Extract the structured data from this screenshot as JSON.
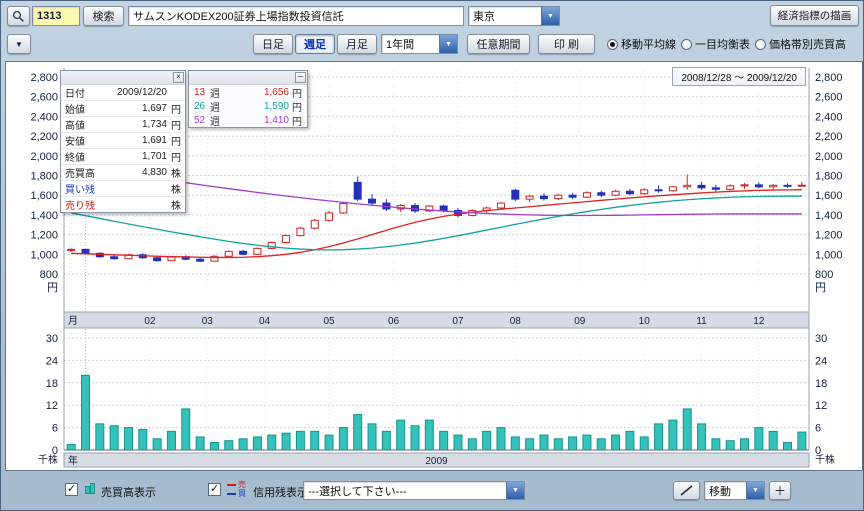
{
  "toolbar": {
    "code_value": "1313",
    "search_label": "検索",
    "name_value": "サムスンKODEX200証券上場指数投資信託",
    "market_value": "東京",
    "econ_button_label": "経済指標の描画"
  },
  "period_bar": {
    "daily_label": "日足",
    "weekly_label": "週足",
    "monthly_label": "月足",
    "range_value": "1年間",
    "custom_range_label": "任意期間",
    "print_label": "印 刷",
    "radios": [
      {
        "label": "移動平均線",
        "checked": true
      },
      {
        "label": "一目均衡表",
        "checked": false
      },
      {
        "label": "価格帯別売買高",
        "checked": false
      }
    ]
  },
  "info_box": {
    "rows": [
      {
        "label": "日付",
        "value": "2009/12/20",
        "unit": ""
      },
      {
        "label": "始値",
        "value": "1,697",
        "unit": "円"
      },
      {
        "label": "高値",
        "value": "1,734",
        "unit": "円"
      },
      {
        "label": "安値",
        "value": "1,691",
        "unit": "円"
      },
      {
        "label": "終値",
        "value": "1,701",
        "unit": "円"
      },
      {
        "label": "売買高",
        "value": "4,830",
        "unit": "株"
      },
      {
        "label": "買い残",
        "value": "",
        "unit": "株"
      },
      {
        "label": "売り残",
        "value": "",
        "unit": "株"
      }
    ]
  },
  "legend": {
    "rows": [
      {
        "period": "13",
        "period_unit": "週",
        "value": "1,656",
        "value_unit": "円",
        "color": "#dd2222"
      },
      {
        "period": "26",
        "period_unit": "週",
        "value": "1,590",
        "value_unit": "円",
        "color": "#13a39a"
      },
      {
        "period": "52",
        "period_unit": "週",
        "value": "1,410",
        "value_unit": "円",
        "color": "#a23cc8"
      }
    ]
  },
  "bottom_bar": {
    "volume_check_label": "売買高表示",
    "margin_check_label": "信用残表示",
    "margin_sell": "売",
    "margin_buy": "買",
    "select_value": "---選択して下さい---",
    "move_value": "移動",
    "plus_label": "＋"
  },
  "icons": {
    "arrow_down": "▼",
    "check": "✓",
    "close": "×",
    "minimize": "─"
  },
  "chart_data": {
    "type": "candlestick",
    "date_range": "2008/12/28 ～ 2009/12/20",
    "price_axis": {
      "min": 800,
      "max": 2800,
      "step": 200,
      "unit": "円"
    },
    "volume_axis": {
      "min": 0,
      "max": 30,
      "step": 6,
      "unit": "千株"
    },
    "months": [
      {
        "label": "月",
        "week": 0
      },
      {
        "label": "02",
        "week": 5.5
      },
      {
        "label": "03",
        "week": 9.5
      },
      {
        "label": "04",
        "week": 13.5
      },
      {
        "label": "05",
        "week": 18
      },
      {
        "label": "06",
        "week": 22.5
      },
      {
        "label": "07",
        "week": 27
      },
      {
        "label": "08",
        "week": 31
      },
      {
        "label": "09",
        "week": 35.5
      },
      {
        "label": "10",
        "week": 40
      },
      {
        "label": "11",
        "week": 44
      },
      {
        "label": "12",
        "week": 48
      }
    ],
    "year_row": {
      "label": "年",
      "value": "2009"
    },
    "colors": {
      "up_candle": "#cc2222",
      "up_fill": "#ffffff",
      "down_candle": "#2431b8",
      "volume_bar": "#35c2ba",
      "volume_border": "#13968e",
      "grid": "#ccd2db",
      "month_line": "#dde2ea",
      "year_line": "#dfb565"
    },
    "candles": [
      [
        1040,
        1060,
        1025,
        1050
      ],
      [
        1050,
        1055,
        1000,
        1010
      ],
      [
        1010,
        1020,
        965,
        975
      ],
      [
        975,
        990,
        945,
        955
      ],
      [
        955,
        1005,
        950,
        995
      ],
      [
        995,
        1010,
        955,
        965
      ],
      [
        965,
        975,
        925,
        935
      ],
      [
        935,
        985,
        930,
        975
      ],
      [
        975,
        990,
        940,
        950
      ],
      [
        950,
        965,
        920,
        930
      ],
      [
        930,
        990,
        925,
        980
      ],
      [
        980,
        1040,
        975,
        1030
      ],
      [
        1030,
        1045,
        990,
        1000
      ],
      [
        1000,
        1070,
        995,
        1060
      ],
      [
        1060,
        1130,
        1050,
        1120
      ],
      [
        1120,
        1200,
        1110,
        1190
      ],
      [
        1190,
        1280,
        1180,
        1265
      ],
      [
        1265,
        1360,
        1250,
        1345
      ],
      [
        1345,
        1440,
        1330,
        1420
      ],
      [
        1420,
        1530,
        1410,
        1515
      ],
      [
        1730,
        1790,
        1540,
        1560
      ],
      [
        1560,
        1610,
        1490,
        1520
      ],
      [
        1520,
        1560,
        1440,
        1460
      ],
      [
        1460,
        1510,
        1430,
        1495
      ],
      [
        1495,
        1520,
        1420,
        1440
      ],
      [
        1440,
        1500,
        1430,
        1490
      ],
      [
        1490,
        1505,
        1425,
        1445
      ],
      [
        1445,
        1470,
        1375,
        1395
      ],
      [
        1395,
        1455,
        1385,
        1445
      ],
      [
        1445,
        1485,
        1425,
        1470
      ],
      [
        1470,
        1530,
        1455,
        1520
      ],
      [
        1650,
        1665,
        1540,
        1560
      ],
      [
        1560,
        1605,
        1530,
        1590
      ],
      [
        1590,
        1620,
        1545,
        1565
      ],
      [
        1565,
        1615,
        1550,
        1600
      ],
      [
        1600,
        1625,
        1560,
        1580
      ],
      [
        1580,
        1640,
        1570,
        1625
      ],
      [
        1625,
        1645,
        1580,
        1600
      ],
      [
        1600,
        1655,
        1590,
        1640
      ],
      [
        1640,
        1665,
        1600,
        1615
      ],
      [
        1615,
        1670,
        1605,
        1655
      ],
      [
        1655,
        1700,
        1625,
        1645
      ],
      [
        1645,
        1695,
        1635,
        1685
      ],
      [
        1685,
        1810,
        1655,
        1700
      ],
      [
        1700,
        1735,
        1655,
        1675
      ],
      [
        1675,
        1705,
        1640,
        1660
      ],
      [
        1660,
        1710,
        1650,
        1695
      ],
      [
        1695,
        1725,
        1665,
        1705
      ],
      [
        1705,
        1730,
        1670,
        1685
      ],
      [
        1685,
        1715,
        1655,
        1700
      ],
      [
        1700,
        1720,
        1675,
        1690
      ],
      [
        1697,
        1734,
        1691,
        1701
      ]
    ],
    "volumes": [
      1.5,
      20,
      7,
      6.5,
      6,
      5.5,
      3,
      5,
      11,
      3.5,
      2,
      2.5,
      3,
      3.5,
      4,
      4.5,
      5,
      5,
      4,
      6,
      9.5,
      7,
      5,
      8,
      6.5,
      8,
      5,
      4,
      3,
      5,
      6,
      3.5,
      3,
      4,
      3,
      3.5,
      4,
      3,
      4,
      5,
      3.5,
      7,
      8,
      11,
      7,
      3,
      2.5,
      3,
      6,
      5,
      2,
      4.8
    ],
    "moving_averages": [
      {
        "name": "13週",
        "color": "#dd2222",
        "values": [
          1010,
          1005,
          1000,
          995,
          990,
          985,
          980,
          976,
          973,
          970,
          968,
          968,
          970,
          976,
          986,
          1000,
          1020,
          1046,
          1078,
          1115,
          1156,
          1200,
          1244,
          1286,
          1324,
          1357,
          1385,
          1408,
          1427,
          1443,
          1457,
          1470,
          1483,
          1496,
          1509,
          1522,
          1535,
          1548,
          1560,
          1572,
          1583,
          1594,
          1604,
          1614,
          1623,
          1631,
          1638,
          1644,
          1649,
          1652,
          1654,
          1656
        ]
      },
      {
        "name": "26週",
        "color": "#13a39a",
        "values": [
          1420,
          1392,
          1364,
          1336,
          1308,
          1281,
          1254,
          1228,
          1203,
          1178,
          1154,
          1131,
          1110,
          1092,
          1076,
          1063,
          1053,
          1047,
          1045,
          1047,
          1053,
          1063,
          1077,
          1094,
          1114,
          1137,
          1162,
          1189,
          1217,
          1246,
          1275,
          1304,
          1332,
          1359,
          1385,
          1410,
          1434,
          1456,
          1477,
          1496,
          1513,
          1528,
          1542,
          1554,
          1564,
          1572,
          1579,
          1584,
          1587,
          1589,
          1590,
          1590
        ]
      },
      {
        "name": "52週",
        "color": "#a23cc8",
        "values": [
          1900,
          1880,
          1858,
          1836,
          1814,
          1792,
          1770,
          1748,
          1727,
          1706,
          1686,
          1666,
          1647,
          1628,
          1610,
          1592,
          1575,
          1558,
          1542,
          1527,
          1512,
          1498,
          1485,
          1472,
          1460,
          1449,
          1439,
          1430,
          1422,
          1415,
          1409,
          1404,
          1400,
          1397,
          1395,
          1394,
          1394,
          1395,
          1396,
          1398,
          1400,
          1402,
          1404,
          1406,
          1408,
          1409,
          1410,
          1410,
          1410,
          1410,
          1410,
          1410
        ]
      }
    ]
  }
}
